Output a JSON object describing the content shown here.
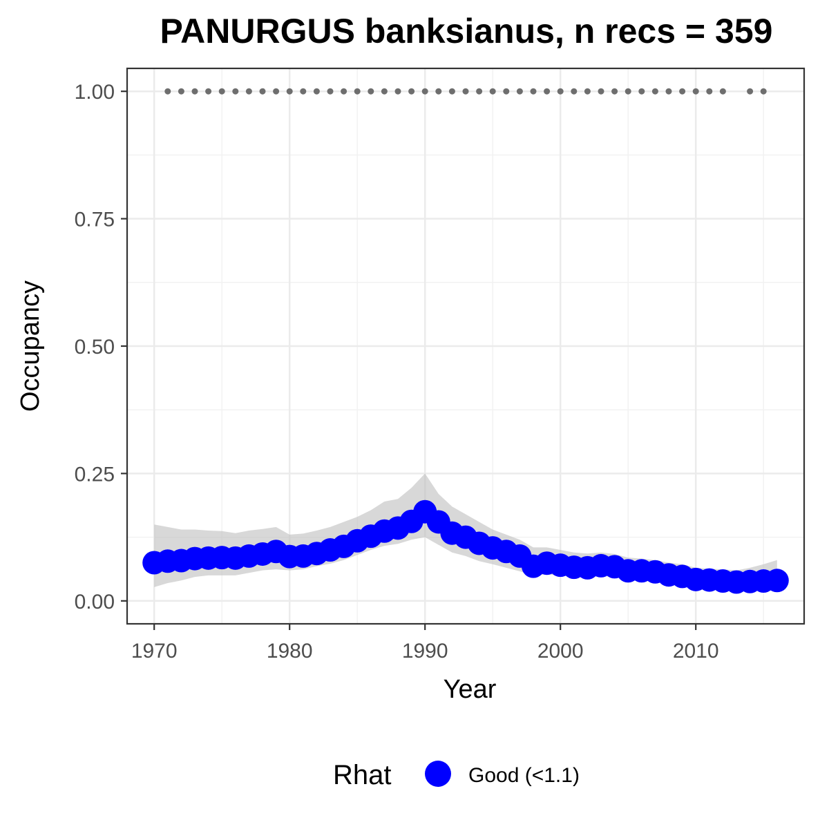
{
  "chart_data": {
    "type": "line",
    "title": "PANURGUS banksianus, n recs = 359",
    "xlabel": "Year",
    "ylabel": "Occupancy",
    "xlim": [
      1968,
      2018
    ],
    "ylim": [
      -0.045,
      1.045
    ],
    "x_ticks": [
      1970,
      1980,
      1990,
      2000,
      2010
    ],
    "y_ticks": [
      0.0,
      0.25,
      0.5,
      0.75,
      1.0
    ],
    "x_tick_labels": [
      "1970",
      "1980",
      "1990",
      "2000",
      "2010"
    ],
    "y_tick_labels": [
      "0.00",
      "0.25",
      "0.50",
      "0.75",
      "1.00"
    ],
    "grid": true,
    "legend": {
      "position": "bottom",
      "title": "Rhat",
      "entries": [
        {
          "label": "Good (<1.1)",
          "color": "#0000ff"
        }
      ]
    },
    "colors": {
      "series": "#0000ff",
      "band": "#bebebe",
      "rhat_dots": "#6e6e6e"
    },
    "years": [
      1970,
      1971,
      1972,
      1973,
      1974,
      1975,
      1976,
      1977,
      1978,
      1979,
      1980,
      1981,
      1982,
      1983,
      1984,
      1985,
      1986,
      1987,
      1988,
      1989,
      1990,
      1991,
      1992,
      1993,
      1994,
      1995,
      1996,
      1997,
      1998,
      1999,
      2000,
      2001,
      2002,
      2003,
      2004,
      2005,
      2006,
      2007,
      2008,
      2009,
      2010,
      2011,
      2012,
      2013,
      2014,
      2015,
      2016
    ],
    "series": [
      {
        "name": "Good (<1.1)",
        "values": [
          0.075,
          0.078,
          0.079,
          0.083,
          0.084,
          0.085,
          0.084,
          0.088,
          0.092,
          0.097,
          0.087,
          0.088,
          0.093,
          0.1,
          0.107,
          0.118,
          0.127,
          0.137,
          0.143,
          0.156,
          0.175,
          0.155,
          0.133,
          0.125,
          0.113,
          0.104,
          0.097,
          0.088,
          0.068,
          0.074,
          0.07,
          0.066,
          0.065,
          0.069,
          0.067,
          0.059,
          0.059,
          0.057,
          0.051,
          0.048,
          0.042,
          0.041,
          0.039,
          0.037,
          0.038,
          0.039,
          0.04
        ],
        "lower": [
          0.027,
          0.035,
          0.04,
          0.047,
          0.05,
          0.05,
          0.05,
          0.055,
          0.06,
          0.062,
          0.06,
          0.062,
          0.068,
          0.073,
          0.08,
          0.09,
          0.1,
          0.108,
          0.112,
          0.12,
          0.125,
          0.11,
          0.095,
          0.088,
          0.078,
          0.072,
          0.065,
          0.058,
          0.05,
          0.052,
          0.05,
          0.047,
          0.046,
          0.049,
          0.047,
          0.04,
          0.04,
          0.037,
          0.033,
          0.03,
          0.025,
          0.024,
          0.022,
          0.02,
          0.02,
          0.02,
          0.02
        ],
        "upper": [
          0.15,
          0.145,
          0.14,
          0.14,
          0.138,
          0.137,
          0.133,
          0.138,
          0.141,
          0.145,
          0.13,
          0.132,
          0.138,
          0.145,
          0.155,
          0.165,
          0.178,
          0.195,
          0.2,
          0.222,
          0.25,
          0.21,
          0.185,
          0.17,
          0.155,
          0.14,
          0.13,
          0.12,
          0.105,
          0.105,
          0.1,
          0.095,
          0.093,
          0.095,
          0.092,
          0.085,
          0.083,
          0.08,
          0.075,
          0.072,
          0.065,
          0.063,
          0.062,
          0.06,
          0.065,
          0.072,
          0.08
        ]
      }
    ],
    "rhat_indicator": {
      "y": 1.0,
      "x": [
        1971,
        1972,
        1973,
        1974,
        1975,
        1976,
        1977,
        1978,
        1979,
        1980,
        1981,
        1982,
        1983,
        1984,
        1985,
        1986,
        1987,
        1988,
        1989,
        1990,
        1991,
        1992,
        1993,
        1994,
        1995,
        1996,
        1997,
        1998,
        1999,
        2000,
        2001,
        2002,
        2003,
        2004,
        2005,
        2006,
        2007,
        2008,
        2009,
        2010,
        2011,
        2012,
        2014,
        2015
      ]
    }
  }
}
